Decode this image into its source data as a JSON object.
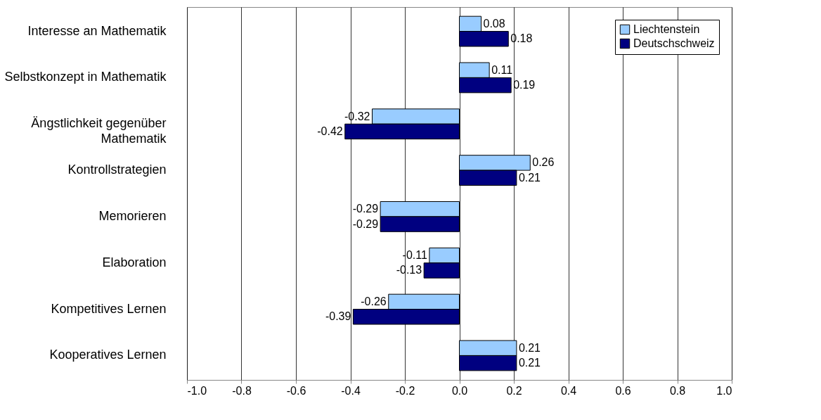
{
  "chart_data": {
    "type": "bar",
    "orientation": "horizontal",
    "categories": [
      "Interesse an Mathematik",
      "Selbstkonzept in Mathematik",
      "Ängstlichkeit gegenüber Mathematik",
      "Kontrollstrategien",
      "Memorieren",
      "Elaboration",
      "Kompetitives Lernen",
      "Kooperatives Lernen"
    ],
    "series": [
      {
        "name": "Liechtenstein",
        "color": "#99ccff",
        "values": [
          0.08,
          0.11,
          -0.32,
          0.26,
          -0.29,
          -0.11,
          -0.26,
          0.21
        ]
      },
      {
        "name": "Deutschschweiz",
        "color": "#000080",
        "values": [
          0.18,
          0.19,
          -0.42,
          0.21,
          -0.29,
          -0.13,
          -0.39,
          0.21
        ]
      }
    ],
    "xlim": [
      -1.0,
      1.0
    ],
    "xticks": [
      {
        "value": -1,
        "label": "-1.0"
      },
      {
        "value": -0.8,
        "label": "-0.8"
      },
      {
        "value": -0.6,
        "label": "-0.6"
      },
      {
        "value": -0.4,
        "label": "-0.4"
      },
      {
        "value": -0.2,
        "label": "-0.2"
      },
      {
        "value": 0,
        "label": "0.0"
      },
      {
        "value": 0.2,
        "label": "0.2"
      },
      {
        "value": 0.4,
        "label": "0.4"
      },
      {
        "value": 0.6,
        "label": "0.6"
      },
      {
        "value": 0.8,
        "label": "0.8"
      },
      {
        "value": 1,
        "label": "1.0"
      }
    ],
    "grid": "x",
    "legend": "top right",
    "data_labels": true
  }
}
